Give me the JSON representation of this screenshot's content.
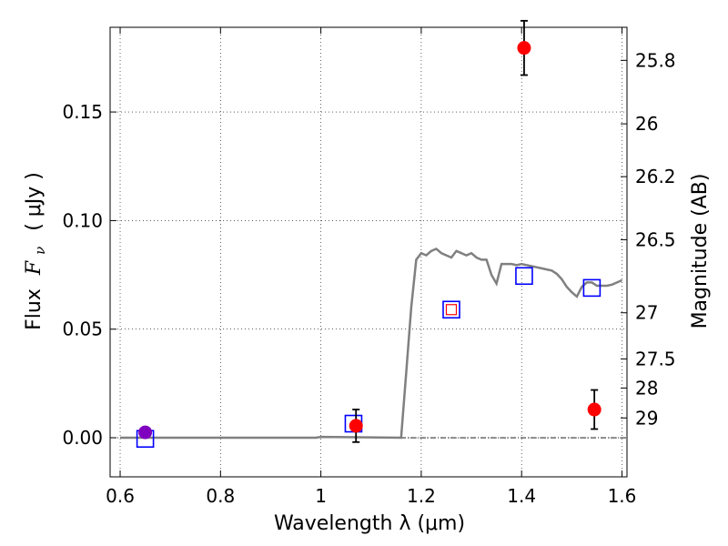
{
  "chart_data": {
    "type": "scatter",
    "xlabel": "Wavelength  λ (μm)",
    "ylabel_prefix": "Flux",
    "ylabel_symbol": "F",
    "ylabel_sub": "ν",
    "ylabel_unit": "( μJy )",
    "y2label": "Magnitude (AB)",
    "xlim": [
      0.58,
      1.61
    ],
    "ylim": [
      -0.018,
      0.189
    ],
    "x_ticks": [
      0.6,
      0.8,
      1.0,
      1.2,
      1.4,
      1.6
    ],
    "x_tick_labels": [
      "0.6",
      "0.8",
      "1",
      "1.2",
      "1.4",
      "1.6"
    ],
    "y_ticks": [
      0.0,
      0.05,
      0.1,
      0.15
    ],
    "y_tick_labels": [
      "0.00",
      "0.05",
      "0.10",
      "0.15"
    ],
    "y2_ticks": [
      25.8,
      26,
      26.2,
      26.5,
      27,
      27.5,
      28,
      29
    ],
    "y2_tick_labels": [
      "25.8",
      "26",
      "26.2",
      "26.5",
      "27",
      "27.5",
      "28",
      "29"
    ],
    "grid": true,
    "colors": {
      "observed": "#ff0000",
      "model_points": "#0000ff",
      "template": "#808080",
      "marker_overlap": "#7f00bf",
      "errorbar": "#000000",
      "inner_square": "#ff0000"
    },
    "series": [
      {
        "kind": "line",
        "color": "#808080",
        "x": [
          0.6,
          0.99,
          1.0,
          1.16,
          1.17,
          1.18,
          1.19,
          1.2,
          1.21,
          1.22,
          1.23,
          1.24,
          1.25,
          1.26,
          1.27,
          1.28,
          1.29,
          1.3,
          1.31,
          1.32,
          1.33,
          1.34,
          1.35,
          1.36,
          1.37,
          1.38,
          1.39,
          1.4,
          1.41,
          1.42,
          1.43,
          1.44,
          1.45,
          1.46,
          1.47,
          1.48,
          1.49,
          1.5,
          1.51,
          1.52,
          1.53,
          1.54,
          1.55,
          1.56,
          1.57,
          1.58,
          1.59,
          1.6
        ],
        "y": [
          0.0,
          0.0,
          0.0004,
          0.0,
          0.03,
          0.06,
          0.082,
          0.085,
          0.084,
          0.086,
          0.087,
          0.085,
          0.084,
          0.083,
          0.086,
          0.085,
          0.084,
          0.085,
          0.083,
          0.082,
          0.082,
          0.075,
          0.071,
          0.08,
          0.08,
          0.08,
          0.0795,
          0.08,
          0.0795,
          0.079,
          0.0785,
          0.078,
          0.0775,
          0.077,
          0.0755,
          0.073,
          0.0695,
          0.067,
          0.065,
          0.0695,
          0.0715,
          0.0715,
          0.07,
          0.07,
          0.07,
          0.0705,
          0.0715,
          0.0725
        ]
      },
      {
        "kind": "squares",
        "color": "#0000ff",
        "x": [
          0.65,
          1.065,
          1.26,
          1.405,
          1.54
        ],
        "y": [
          -0.0005,
          0.0065,
          0.059,
          0.0745,
          0.069
        ]
      },
      {
        "kind": "circles",
        "color": "#ff0000",
        "x": [
          0.65,
          1.07,
          1.405,
          1.545
        ],
        "y": [
          0.0025,
          0.0055,
          0.1795,
          0.013
        ],
        "yerr": [
          0.002,
          0.0075,
          0.0125,
          0.009
        ]
      }
    ]
  }
}
